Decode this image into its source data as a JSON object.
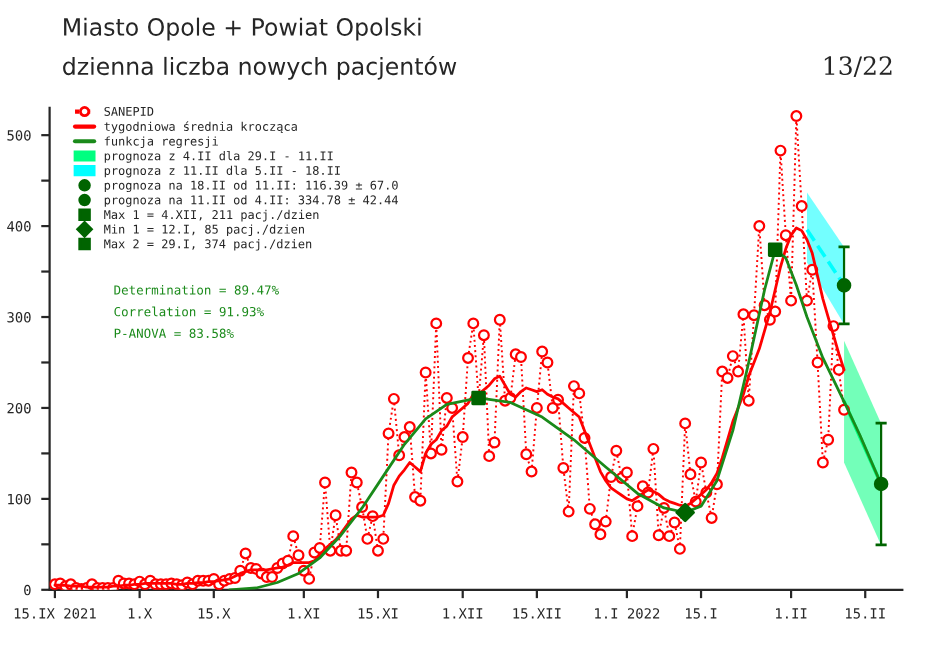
{
  "chart_data": {
    "type": "line",
    "title": "Miasto Opole + Powiat Opolski",
    "subtitle": "dzienna liczba nowych pacjentów",
    "annotations": [
      "Determination = 89.47%",
      "Correlation = 91.93%",
      "P-ANOVA = 83.58%",
      "13/22"
    ],
    "x": [
      "2021-09-15",
      "2021-09-16",
      "2021-09-17",
      "2021-09-18",
      "2021-09-19",
      "2021-09-20",
      "2021-09-21",
      "2021-09-22",
      "2021-09-23",
      "2021-09-24",
      "2021-09-25",
      "2021-09-26",
      "2021-09-27",
      "2021-09-28",
      "2021-09-29",
      "2021-09-30",
      "2021-10-01",
      "2021-10-02",
      "2021-10-03",
      "2021-10-04",
      "2021-10-05",
      "2021-10-06",
      "2021-10-07",
      "2021-10-08",
      "2021-10-09",
      "2021-10-10",
      "2021-10-11",
      "2021-10-12",
      "2021-10-13",
      "2021-10-14",
      "2021-10-15",
      "2021-10-16",
      "2021-10-17",
      "2021-10-18",
      "2021-10-19",
      "2021-10-20",
      "2021-10-21",
      "2021-10-22",
      "2021-10-23",
      "2021-10-24",
      "2021-10-25",
      "2021-10-26",
      "2021-10-27",
      "2021-10-28",
      "2021-10-29",
      "2021-10-30",
      "2021-10-31",
      "2021-11-01",
      "2021-11-02",
      "2021-11-03",
      "2021-11-04",
      "2021-11-05",
      "2021-11-06",
      "2021-11-07",
      "2021-11-08",
      "2021-11-09",
      "2021-11-10",
      "2021-11-11",
      "2021-11-12",
      "2021-11-13",
      "2021-11-14",
      "2021-11-15",
      "2021-11-16",
      "2021-11-17",
      "2021-11-18",
      "2021-11-19",
      "2021-11-20",
      "2021-11-21",
      "2021-11-22",
      "2021-11-23",
      "2021-11-24",
      "2021-11-25",
      "2021-11-26",
      "2021-11-27",
      "2021-11-28",
      "2021-11-29",
      "2021-11-30",
      "2021-12-01",
      "2021-12-02",
      "2021-12-03",
      "2021-12-04",
      "2021-12-05",
      "2021-12-06",
      "2021-12-07",
      "2021-12-08",
      "2021-12-09",
      "2021-12-10",
      "2021-12-11",
      "2021-12-12",
      "2021-12-13",
      "2021-12-14",
      "2021-12-15",
      "2021-12-16",
      "2021-12-17",
      "2021-12-18",
      "2021-12-19",
      "2021-12-20",
      "2021-12-21",
      "2021-12-22",
      "2021-12-23",
      "2021-12-24",
      "2021-12-25",
      "2021-12-26",
      "2021-12-27",
      "2021-12-28",
      "2021-12-29",
      "2021-12-30",
      "2021-12-31",
      "2022-01-01",
      "2022-01-02",
      "2022-01-03",
      "2022-01-04",
      "2022-01-05",
      "2022-01-06",
      "2022-01-07",
      "2022-01-08",
      "2022-01-09",
      "2022-01-10",
      "2022-01-11",
      "2022-01-12",
      "2022-01-13",
      "2022-01-14",
      "2022-01-15",
      "2022-01-16",
      "2022-01-17",
      "2022-01-18",
      "2022-01-19",
      "2022-01-20",
      "2022-01-21",
      "2022-01-22",
      "2022-01-23",
      "2022-01-24",
      "2022-01-25",
      "2022-01-26",
      "2022-01-27",
      "2022-01-28",
      "2022-01-29",
      "2022-01-30",
      "2022-01-31",
      "2022-02-01",
      "2022-02-02",
      "2022-02-03",
      "2022-02-04",
      "2022-02-05",
      "2022-02-06",
      "2022-02-07",
      "2022-02-08",
      "2022-02-09",
      "2022-02-10",
      "2022-02-11"
    ],
    "series": [
      {
        "name": "SANEPID",
        "color": "#ff0000",
        "marker": "circle",
        "line_style": "dotted",
        "values": [
          6,
          7,
          4,
          6,
          2,
          1,
          2,
          6,
          2,
          2,
          2,
          2,
          10,
          7,
          7,
          6,
          9,
          6,
          10,
          6,
          6,
          6,
          7,
          6,
          5,
          8,
          6,
          10,
          10,
          10,
          12,
          6,
          10,
          12,
          13,
          21,
          40,
          24,
          23,
          18,
          14,
          14,
          24,
          29,
          32,
          59,
          38,
          21,
          12,
          41,
          46,
          118,
          43,
          82,
          43,
          43,
          129,
          118,
          91,
          56,
          81,
          43,
          56,
          172,
          210,
          148,
          168,
          179,
          102,
          98,
          239,
          150,
          293,
          154,
          211,
          200,
          119,
          168,
          255,
          293,
          210,
          280,
          147,
          162,
          297,
          208,
          211,
          259,
          256,
          149,
          130,
          200,
          262,
          250,
          200,
          209,
          134,
          86,
          224,
          216,
          167,
          89,
          72,
          61,
          75,
          124,
          153,
          123,
          129,
          59,
          92,
          114,
          107,
          155,
          60,
          90,
          59,
          74,
          45,
          183,
          127,
          97,
          140,
          107,
          79,
          116,
          240,
          233,
          257,
          240,
          303,
          208,
          302,
          400,
          313,
          297,
          306,
          483,
          390,
          318,
          521,
          422,
          318,
          352,
          250,
          140,
          165,
          290,
          242,
          198
        ]
      },
      {
        "name": "tygodniowa średnia krocząca",
        "color": "#ff0000",
        "line_style": "solid",
        "values": [
          5,
          5,
          5,
          4,
          4,
          4,
          3,
          3,
          3,
          3,
          3,
          4,
          4,
          5,
          5,
          6,
          6,
          7,
          7,
          7,
          7,
          7,
          7,
          6,
          6,
          7,
          7,
          8,
          8,
          9,
          9,
          10,
          11,
          12,
          15,
          18,
          20,
          22,
          22,
          22,
          22,
          23,
          24,
          25,
          27,
          30,
          30,
          30,
          30,
          32,
          38,
          45,
          50,
          55,
          62,
          70,
          78,
          82,
          80,
          80,
          80,
          80,
          82,
          95,
          115,
          125,
          132,
          140,
          135,
          130,
          150,
          160,
          165,
          175,
          180,
          190,
          195,
          200,
          205,
          215,
          215,
          220,
          225,
          232,
          235,
          225,
          215,
          212,
          218,
          222,
          220,
          218,
          220,
          215,
          212,
          210,
          205,
          200,
          195,
          190,
          175,
          160,
          145,
          130,
          120,
          112,
          108,
          104,
          100,
          98,
          102,
          106,
          110,
          108,
          105,
          100,
          97,
          95,
          93,
          92,
          95,
          100,
          105,
          110,
          118,
          128,
          145,
          165,
          185,
          200,
          215,
          235,
          250,
          265,
          285,
          305,
          330,
          355,
          375,
          390,
          398,
          395,
          385,
          370,
          345,
          320,
          300,
          280,
          260,
          242
        ]
      },
      {
        "name": "funkcja regresji",
        "color": "#1a8a1a",
        "line_style": "solid",
        "x": [
          "2021-10-18",
          "2021-10-23",
          "2021-10-27",
          "2021-10-31",
          "2021-11-04",
          "2021-11-08",
          "2021-11-12",
          "2021-11-16",
          "2021-11-20",
          "2021-11-24",
          "2021-11-28",
          "2021-12-04",
          "2021-12-10",
          "2021-12-16",
          "2021-12-22",
          "2021-12-28",
          "2022-01-03",
          "2022-01-08",
          "2022-01-12",
          "2022-01-15",
          "2022-01-18",
          "2022-01-21",
          "2022-01-24",
          "2022-01-27",
          "2022-01-29",
          "2022-01-31",
          "2022-02-02",
          "2022-02-04",
          "2022-02-07",
          "2022-02-11",
          "2022-02-14",
          "2022-02-18"
        ],
        "values": [
          0,
          2,
          8,
          18,
          35,
          60,
          90,
          125,
          160,
          188,
          204,
          211,
          206,
          190,
          165,
          135,
          106,
          90,
          85,
          92,
          120,
          175,
          250,
          330,
          374,
          365,
          335,
          300,
          255,
          207,
          170,
          116
        ]
      },
      {
        "name": "prognoza z 4.II dla 29.I - 11.II",
        "color": "#00ff80",
        "x": [
          "2022-02-11",
          "2022-02-18"
        ],
        "values": [
          207,
          116
        ],
        "lower": [
          140,
          49
        ],
        "upper": [
          274,
          183
        ]
      },
      {
        "name": "prognoza z 11.II dla 5.II - 18.II",
        "color": "#00ffff",
        "line_style": "dashed",
        "x": [
          "2022-02-04",
          "2022-02-11"
        ],
        "values": [
          396,
          335
        ],
        "lower": [
          360,
          292
        ],
        "upper": [
          437,
          377
        ]
      },
      {
        "name": "prognoza na 18.II od 11.II: 116.39 ± 67.0",
        "type": "scatter",
        "color": "#006400",
        "marker": "circle",
        "x": [
          "2022-02-18"
        ],
        "values": [
          116.39
        ],
        "errors": [
          67.0
        ]
      },
      {
        "name": "prognoza na 11.II od 4.II: 334.78 ± 42.44",
        "type": "scatter",
        "color": "#006400",
        "marker": "circle",
        "x": [
          "2022-02-11"
        ],
        "values": [
          334.78
        ],
        "errors": [
          42.44
        ]
      },
      {
        "name": "Max 1 = 4.XII, 211 pacj./dzien",
        "type": "scatter",
        "color": "#006400",
        "marker": "square",
        "x": [
          "2021-12-04"
        ],
        "values": [
          211
        ]
      },
      {
        "name": "Min 1 = 12.I, 85 pacj./dzien",
        "type": "scatter",
        "color": "#006400",
        "marker": "diamond",
        "x": [
          "2022-01-12"
        ],
        "values": [
          85
        ]
      },
      {
        "name": "Max 2 = 29.I, 374 pacj./dzien",
        "type": "scatter",
        "color": "#006400",
        "marker": "square",
        "x": [
          "2022-01-29"
        ],
        "values": [
          374
        ]
      }
    ],
    "xlim": [
      "2021-09-14",
      "2022-02-22"
    ],
    "xticks": [
      {
        "value": "2021-09-15",
        "label": "15.IX 2021"
      },
      {
        "value": "2021-10-01",
        "label": "1.X"
      },
      {
        "value": "2021-10-15",
        "label": "15.X"
      },
      {
        "value": "2021-11-01",
        "label": "1.XI"
      },
      {
        "value": "2021-11-15",
        "label": "15.XI"
      },
      {
        "value": "2021-12-01",
        "label": "1.XII"
      },
      {
        "value": "2021-12-15",
        "label": "15.XII"
      },
      {
        "value": "2022-01-01",
        "label": "1.I 2022"
      },
      {
        "value": "2022-01-15",
        "label": "15.I"
      },
      {
        "value": "2022-02-01",
        "label": "1.II"
      },
      {
        "value": "2022-02-15",
        "label": "15.II"
      }
    ],
    "ylim": [
      0,
      530
    ],
    "yticks": [
      0,
      {
        "value": 50,
        "label": null
      },
      100,
      {
        "value": 150,
        "label": null
      },
      200,
      {
        "value": 250,
        "label": null
      },
      300,
      {
        "value": 350,
        "label": null
      },
      400,
      {
        "value": 450,
        "label": null
      },
      500
    ],
    "legend": "top left",
    "grid": false
  }
}
